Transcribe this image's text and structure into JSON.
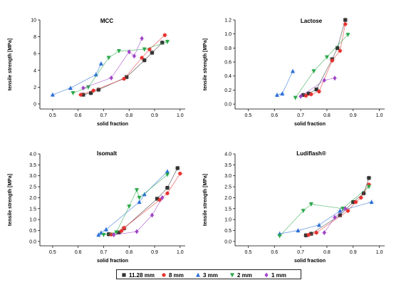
{
  "legend": [
    {
      "label": "11.28 mm",
      "color": "#333333",
      "marker": "square"
    },
    {
      "label": "8 mm",
      "color": "#e8322f",
      "marker": "circle"
    },
    {
      "label": "3 mm",
      "color": "#2b6fd6",
      "marker": "triangle-up"
    },
    {
      "label": "2 mm",
      "color": "#2aa84a",
      "marker": "triangle-down"
    },
    {
      "label": "1 mm",
      "color": "#a044c8",
      "marker": "diamond"
    }
  ],
  "chart_data": [
    {
      "type": "scatter",
      "title": "MCC",
      "xlabel": "solid fraction",
      "ylabel": "tensile strength [MPa]",
      "xlim": [
        0.45,
        1.02
      ],
      "ylim": [
        -0.6,
        10
      ],
      "xticks": [
        "0.5",
        "0.6",
        "0.7",
        "0.8",
        "0.9",
        "1.0"
      ],
      "yticks": [
        "0",
        "2",
        "4",
        "6",
        "8",
        "10"
      ],
      "series": [
        {
          "name": "11.28 mm",
          "x": [
            0.62,
            0.65,
            0.68,
            0.79,
            0.86,
            0.89,
            0.93
          ],
          "y": [
            1.1,
            1.3,
            1.7,
            3.2,
            5.2,
            6.1,
            7.3
          ]
        },
        {
          "name": "8 mm",
          "x": [
            0.61,
            0.66,
            0.78,
            0.85,
            0.88,
            0.94
          ],
          "y": [
            1.1,
            1.6,
            3.0,
            5.5,
            6.5,
            8.2
          ]
        },
        {
          "name": "3 mm",
          "x": [
            0.5,
            0.57,
            0.67,
            0.69
          ],
          "y": [
            1.1,
            1.9,
            3.5,
            4.8
          ]
        },
        {
          "name": "2 mm",
          "x": [
            0.58,
            0.64,
            0.72,
            0.76,
            0.86,
            0.95
          ],
          "y": [
            1.3,
            2.0,
            5.5,
            6.3,
            6.5,
            7.4
          ]
        },
        {
          "name": "1 mm",
          "x": [
            0.62,
            0.73,
            0.8,
            0.82,
            0.85
          ],
          "y": [
            1.9,
            3.1,
            6.2,
            5.7,
            7.8
          ]
        }
      ]
    },
    {
      "type": "scatter",
      "title": "Lactose",
      "xlabel": "solid fraction",
      "ylabel": "tensile strength [MPa]",
      "xlim": [
        0.45,
        1.02
      ],
      "ylim": [
        -0.07,
        1.2
      ],
      "xticks": [
        "0.5",
        "0.6",
        "0.7",
        "0.8",
        "0.9",
        "1.0"
      ],
      "yticks": [
        "0.0",
        "0.2",
        "0.4",
        "0.6",
        "0.8",
        "1.0",
        "1.2"
      ],
      "series": [
        {
          "name": "11.28 mm",
          "x": [
            0.71,
            0.73,
            0.76,
            0.82,
            0.84,
            0.87
          ],
          "y": [
            0.13,
            0.15,
            0.21,
            0.64,
            0.8,
            1.2
          ]
        },
        {
          "name": "8 mm",
          "x": [
            0.72,
            0.74,
            0.77,
            0.82,
            0.85,
            0.87
          ],
          "y": [
            0.12,
            0.14,
            0.18,
            0.62,
            0.76,
            1.14
          ]
        },
        {
          "name": "3 mm",
          "x": [
            0.61,
            0.63,
            0.67
          ],
          "y": [
            0.13,
            0.15,
            0.47
          ]
        },
        {
          "name": "2 mm",
          "x": [
            0.68,
            0.75,
            0.8,
            0.88
          ],
          "y": [
            0.09,
            0.47,
            0.67,
            0.99
          ]
        },
        {
          "name": "1 mm",
          "x": [
            0.7,
            0.79,
            0.83
          ],
          "y": [
            0.11,
            0.34,
            0.37
          ]
        }
      ]
    },
    {
      "type": "scatter",
      "title": "Isomalt",
      "xlabel": "solid fraction",
      "ylabel": "tensile strength [MPa]",
      "xlim": [
        0.45,
        1.02
      ],
      "ylim": [
        -0.2,
        4.0
      ],
      "xticks": [
        "0.5",
        "0.6",
        "0.7",
        "0.8",
        "0.9",
        "1.0"
      ],
      "yticks": [
        "0.0",
        "0.5",
        "1.0",
        "1.5",
        "2.0",
        "2.5",
        "3.0",
        "3.5",
        "4.0"
      ],
      "series": [
        {
          "name": "11.28 mm",
          "x": [
            0.72,
            0.76,
            0.78,
            0.91,
            0.95,
            0.99
          ],
          "y": [
            0.33,
            0.41,
            0.6,
            1.95,
            2.45,
            3.35
          ]
        },
        {
          "name": "8 mm",
          "x": [
            0.73,
            0.77,
            0.78,
            0.92,
            0.95,
            1.0
          ],
          "y": [
            0.32,
            0.48,
            0.62,
            1.9,
            2.2,
            3.1
          ]
        },
        {
          "name": "3 mm",
          "x": [
            0.68,
            0.69,
            0.71,
            0.84,
            0.86,
            0.95
          ],
          "y": [
            0.3,
            0.4,
            0.55,
            1.8,
            2.15,
            3.2
          ]
        },
        {
          "name": "2 mm",
          "x": [
            0.7,
            0.75,
            0.8,
            0.83,
            0.84,
            0.95
          ],
          "y": [
            0.3,
            0.42,
            1.6,
            2.35,
            2.0,
            3.05
          ]
        },
        {
          "name": "1 mm",
          "x": [
            0.74,
            0.83,
            0.89,
            0.93
          ],
          "y": [
            0.3,
            0.45,
            1.2,
            2.0
          ]
        }
      ]
    },
    {
      "type": "scatter",
      "title": "Ludiflash®",
      "xlabel": "solid fraction",
      "ylabel": "tensile strength [MPa]",
      "xlim": [
        0.45,
        1.02
      ],
      "ylim": [
        -0.2,
        4.0
      ],
      "xticks": [
        "0.5",
        "0.6",
        "0.7",
        "0.8",
        "0.9",
        "1.0"
      ],
      "yticks": [
        "0.0",
        "0.5",
        "1.0",
        "1.5",
        "2.0",
        "2.5",
        "3.0",
        "3.5",
        "4.0"
      ],
      "series": [
        {
          "name": "11.28 mm",
          "x": [
            0.72,
            0.74,
            0.85,
            0.9,
            0.94,
            0.96
          ],
          "y": [
            0.28,
            0.35,
            1.2,
            1.8,
            2.2,
            2.9
          ]
        },
        {
          "name": "8 mm",
          "x": [
            0.73,
            0.76,
            0.88,
            0.91,
            0.93,
            0.96
          ],
          "y": [
            0.3,
            0.4,
            1.4,
            1.8,
            2.0,
            2.6
          ]
        },
        {
          "name": "3 mm",
          "x": [
            0.62,
            0.69,
            0.77,
            0.85,
            0.97
          ],
          "y": [
            0.35,
            0.5,
            0.75,
            1.4,
            1.8
          ]
        },
        {
          "name": "2 mm",
          "x": [
            0.62,
            0.71,
            0.74,
            0.86,
            0.96
          ],
          "y": [
            0.25,
            1.4,
            1.7,
            1.5,
            2.5
          ]
        },
        {
          "name": "1 mm",
          "x": [
            0.79,
            0.83,
            0.87
          ],
          "y": [
            0.4,
            1.1,
            1.5
          ]
        }
      ]
    }
  ]
}
